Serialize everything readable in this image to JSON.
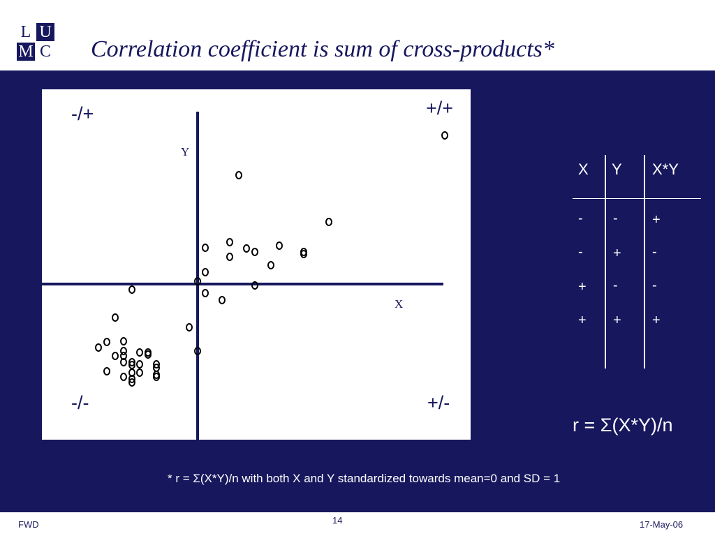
{
  "logo": {
    "letters": [
      "L",
      "U",
      "M",
      "C"
    ]
  },
  "title": "Correlation coefficient is sum of cross-products*",
  "scatter": {
    "quadrant_labels": {
      "top_left": "-/+",
      "top_right": "+/+",
      "bottom_left": "-/-",
      "bottom_right": "+/-"
    },
    "y_axis_label": "Y",
    "x_axis_label": "X",
    "points": [
      [
        577,
        66
      ],
      [
        282,
        123
      ],
      [
        411,
        190
      ],
      [
        234,
        227
      ],
      [
        269,
        219
      ],
      [
        269,
        240
      ],
      [
        293,
        228
      ],
      [
        305,
        233
      ],
      [
        340,
        224
      ],
      [
        375,
        233
      ],
      [
        375,
        236
      ],
      [
        328,
        252
      ],
      [
        234,
        262
      ],
      [
        223,
        275
      ],
      [
        305,
        281
      ],
      [
        129,
        287
      ],
      [
        234,
        292
      ],
      [
        258,
        302
      ],
      [
        105,
        327
      ],
      [
        211,
        341
      ],
      [
        93,
        362
      ],
      [
        81,
        370
      ],
      [
        117,
        361
      ],
      [
        117,
        375
      ],
      [
        105,
        382
      ],
      [
        117,
        382
      ],
      [
        140,
        377
      ],
      [
        152,
        377
      ],
      [
        152,
        380
      ],
      [
        117,
        391
      ],
      [
        129,
        391
      ],
      [
        140,
        394
      ],
      [
        129,
        395
      ],
      [
        164,
        399
      ],
      [
        93,
        404
      ],
      [
        129,
        406
      ],
      [
        140,
        406
      ],
      [
        117,
        412
      ],
      [
        129,
        415
      ],
      [
        164,
        409
      ],
      [
        164,
        412
      ],
      [
        129,
        420
      ],
      [
        223,
        375
      ],
      [
        164,
        394
      ]
    ]
  },
  "sign_table": {
    "headers": [
      "X",
      "Y",
      "X*Y"
    ],
    "rows": [
      [
        "-",
        "-",
        "+"
      ],
      [
        "-",
        "+",
        "-"
      ],
      [
        "+",
        "-",
        "-"
      ],
      [
        "+",
        "+",
        "+"
      ]
    ]
  },
  "formula": "r = Σ(X*Y)/n",
  "footnote": "* r = Σ(X*Y)/n with both X and Y standardized towards mean=0 and SD = 1",
  "footer": {
    "left": "FWD",
    "page": "14",
    "date": "17-May-06"
  },
  "colors": {
    "navy": "#17175e",
    "white": "#ffffff"
  }
}
